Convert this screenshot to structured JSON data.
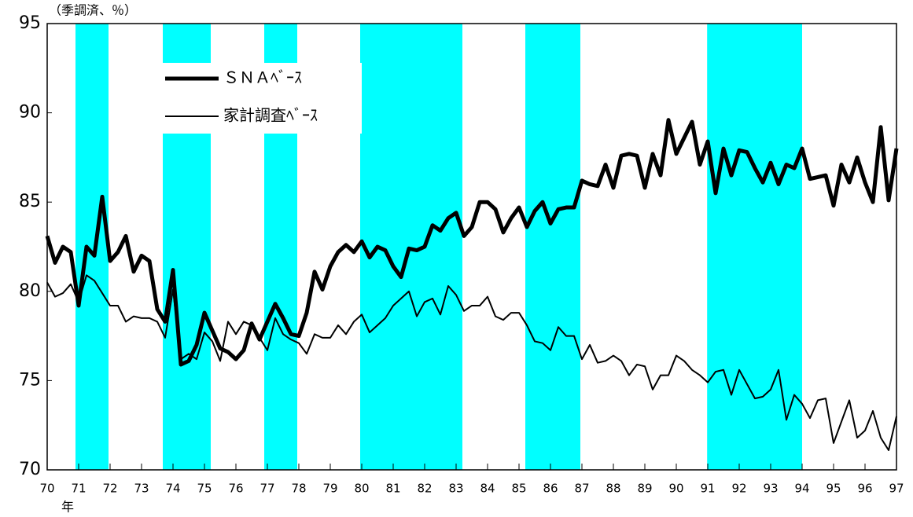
{
  "chart_data": {
    "type": "line",
    "y_unit_label": "（季調済、％）",
    "x_axis_label": "年",
    "xlim": [
      70,
      97
    ],
    "xticks": [
      70,
      71,
      72,
      73,
      74,
      75,
      76,
      77,
      78,
      79,
      80,
      81,
      82,
      83,
      84,
      85,
      86,
      87,
      88,
      89,
      90,
      91,
      92,
      93,
      94,
      95,
      96,
      97
    ],
    "ylim": [
      70,
      95
    ],
    "yticks": [
      70,
      75,
      80,
      85,
      90,
      95
    ],
    "legend": "upper left",
    "shade_color": "#00ffff",
    "shaded_periods": [
      [
        70.9,
        71.95
      ],
      [
        73.675,
        75.2
      ],
      [
        76.9,
        77.95
      ],
      [
        79.95,
        83.2
      ],
      [
        85.2,
        86.95
      ],
      [
        90.98,
        94
      ]
    ],
    "x": [
      70,
      70.25,
      70.5,
      70.75,
      71,
      71.25,
      71.5,
      71.75,
      72,
      72.25,
      72.5,
      72.75,
      73,
      73.25,
      73.5,
      73.75,
      74,
      74.25,
      74.5,
      74.75,
      75,
      75.25,
      75.5,
      75.75,
      76,
      76.25,
      76.5,
      76.75,
      77,
      77.25,
      77.5,
      77.75,
      78,
      78.25,
      78.5,
      78.75,
      79,
      79.25,
      79.5,
      79.75,
      80,
      80.25,
      80.5,
      80.75,
      81,
      81.25,
      81.5,
      81.75,
      82,
      82.25,
      82.5,
      82.75,
      83,
      83.25,
      83.5,
      83.75,
      84,
      84.25,
      84.5,
      84.75,
      85,
      85.25,
      85.5,
      85.75,
      86,
      86.25,
      86.5,
      86.75,
      87,
      87.25,
      87.5,
      87.75,
      88,
      88.25,
      88.5,
      88.75,
      89,
      89.25,
      89.5,
      89.75,
      90,
      90.25,
      90.5,
      90.75,
      91,
      91.25,
      91.5,
      91.75,
      92,
      92.25,
      92.5,
      92.75,
      93,
      93.25,
      93.5,
      93.75,
      94,
      94.25,
      94.5,
      94.75,
      95,
      95.25,
      95.5,
      95.75,
      96,
      96.25,
      96.5,
      96.75,
      97
    ],
    "series": [
      {
        "name": "ＳＮＡﾍﾞｰｽ",
        "color": "#000000",
        "width": 5,
        "values": [
          83.1,
          81.6,
          82.5,
          82.2,
          79.2,
          82.5,
          82.0,
          85.3,
          81.7,
          82.2,
          83.1,
          81.1,
          82.0,
          81.7,
          79.0,
          78.3,
          81.2,
          75.9,
          76.1,
          77.0,
          78.8,
          77.8,
          76.8,
          76.6,
          76.2,
          76.7,
          78.2,
          77.3,
          78.3,
          79.3,
          78.5,
          77.6,
          77.5,
          78.8,
          81.1,
          80.1,
          81.4,
          82.2,
          82.6,
          82.2,
          82.8,
          81.9,
          82.5,
          82.3,
          81.4,
          80.8,
          82.4,
          82.3,
          82.5,
          83.7,
          83.4,
          84.1,
          84.4,
          83.1,
          83.6,
          85.0,
          85.0,
          84.6,
          83.3,
          84.1,
          84.7,
          83.6,
          84.5,
          85.0,
          83.8,
          84.6,
          84.7,
          84.7,
          86.2,
          86.0,
          85.9,
          87.1,
          85.8,
          87.6,
          87.7,
          87.6,
          85.8,
          87.7,
          86.5,
          89.6,
          87.7,
          88.6,
          89.5,
          87.1,
          88.4,
          85.5,
          88.0,
          86.5,
          87.9,
          87.8,
          86.9,
          86.1,
          87.2,
          86.0,
          87.1,
          86.9,
          88.0,
          86.3,
          86.4,
          86.5,
          84.8,
          87.1,
          86.1,
          87.5,
          86.1,
          85.0,
          89.2,
          85.1,
          88.0
        ]
      },
      {
        "name": "家計調査ﾍﾞｰｽ",
        "color": "#000000",
        "width": 2,
        "values": [
          80.5,
          79.7,
          79.9,
          80.4,
          79.4,
          80.9,
          80.6,
          79.9,
          79.2,
          79.2,
          78.3,
          78.6,
          78.5,
          78.5,
          78.3,
          77.4,
          80.1,
          76.2,
          76.5,
          76.2,
          77.7,
          77.2,
          76.1,
          78.3,
          77.6,
          78.3,
          78.1,
          77.4,
          76.7,
          78.5,
          77.6,
          77.3,
          77.1,
          76.5,
          77.6,
          77.4,
          77.4,
          78.1,
          77.6,
          78.3,
          78.7,
          77.7,
          78.1,
          78.5,
          79.2,
          79.6,
          80.0,
          78.6,
          79.4,
          79.6,
          78.7,
          80.3,
          79.8,
          78.9,
          79.2,
          79.2,
          79.7,
          78.6,
          78.4,
          78.8,
          78.8,
          78.1,
          77.2,
          77.1,
          76.7,
          78.0,
          77.5,
          77.5,
          76.2,
          77.0,
          76.0,
          76.1,
          76.4,
          76.1,
          75.3,
          75.9,
          75.8,
          74.5,
          75.3,
          75.3,
          76.4,
          76.1,
          75.6,
          75.3,
          74.9,
          75.5,
          75.6,
          74.2,
          75.6,
          74.8,
          74.0,
          74.1,
          74.5,
          75.6,
          72.8,
          74.2,
          73.7,
          72.9,
          73.9,
          74.0,
          71.5,
          72.7,
          73.9,
          71.8,
          72.2,
          73.3,
          71.8,
          71.1,
          73.0
        ]
      }
    ]
  }
}
